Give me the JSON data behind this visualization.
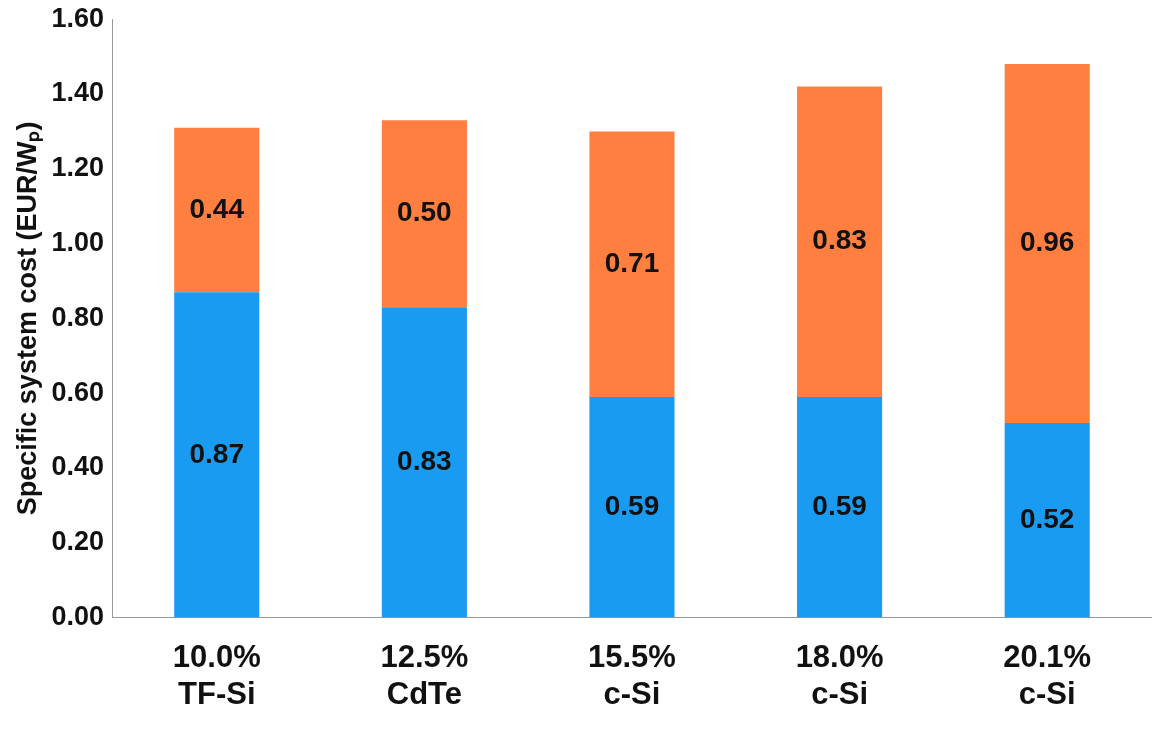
{
  "chart_data": {
    "type": "bar",
    "stacked": true,
    "ylabel": "Specific system cost (EUR/Wₚ)",
    "categories": [
      "10.0%\nTF-Si",
      "12.5%\nCdTe",
      "15.5%\nc-Si",
      "18.0%\nc-Si",
      "20.1%\nc-Si"
    ],
    "series": [
      {
        "color": "#1a9bf2",
        "values": [
          0.87,
          0.83,
          0.59,
          0.59,
          0.52
        ],
        "value_labels": [
          "0.87",
          "0.83",
          "0.59",
          "0.59",
          "0.52"
        ]
      },
      {
        "color": "#ff7f40",
        "values": [
          0.44,
          0.5,
          0.71,
          0.83,
          0.96
        ],
        "value_labels": [
          "0.44",
          "0.50",
          "0.71",
          "0.83",
          "0.96"
        ]
      }
    ],
    "ylim": [
      0,
      1.6
    ],
    "yticks": [
      {
        "value": 0,
        "label": "0.00"
      },
      {
        "value": 0.2,
        "label": "0.20"
      },
      {
        "value": 0.4,
        "label": "0.40"
      },
      {
        "value": 0.6,
        "label": "0.60"
      },
      {
        "value": 0.8,
        "label": "0.80"
      },
      {
        "value": 1.0,
        "label": "1.00"
      },
      {
        "value": 1.2,
        "label": "1.20"
      },
      {
        "value": 1.4,
        "label": "1.40"
      },
      {
        "value": 1.6,
        "label": "1.60"
      }
    ],
    "grid": false,
    "legend": false
  }
}
